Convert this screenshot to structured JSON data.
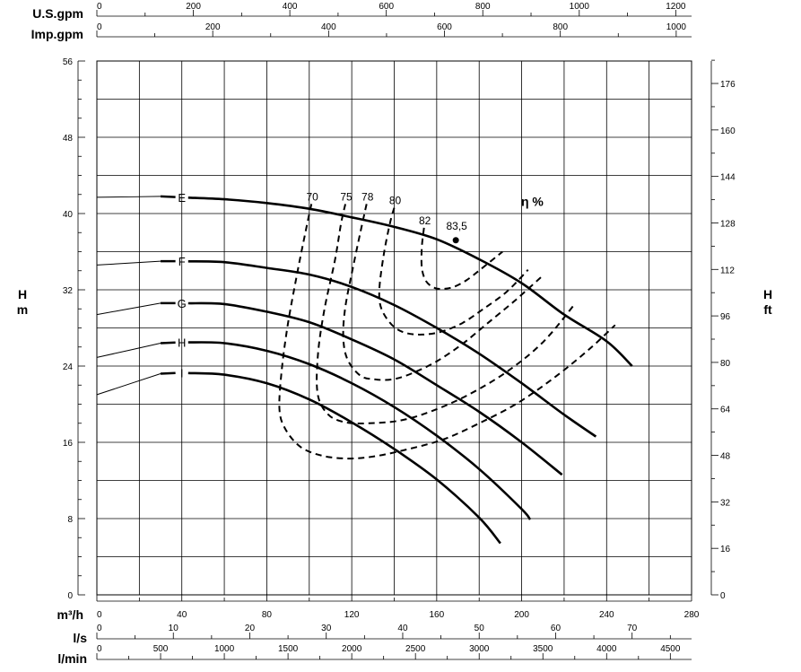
{
  "chart_data": {
    "type": "line",
    "title": "",
    "x_axis": {
      "unit": "m³/h",
      "range": [
        0,
        280
      ],
      "ticks": [
        0,
        40,
        80,
        120,
        160,
        200,
        240,
        280
      ],
      "grid_step": 20
    },
    "y_left": {
      "label_top": "H",
      "label_bottom": "m",
      "range": [
        0,
        56
      ],
      "ticks": [
        0,
        8,
        16,
        24,
        32,
        40,
        48,
        56
      ],
      "grid_step": 4
    },
    "y_right": {
      "label_top": "H",
      "label_bottom": "ft",
      "ticks": [
        0,
        16,
        32,
        48,
        64,
        80,
        96,
        112,
        128,
        144,
        160,
        176
      ]
    },
    "top_axes": [
      {
        "unit": "U.S.gpm",
        "ticks": [
          0,
          200,
          400,
          600,
          800,
          1000,
          1200
        ]
      },
      {
        "unit": "Imp.gpm",
        "ticks": [
          0,
          200,
          400,
          600,
          800,
          1000
        ]
      }
    ],
    "bottom_axes": [
      {
        "unit": "l/s",
        "ticks": [
          0,
          10,
          20,
          30,
          40,
          50,
          60,
          70
        ]
      },
      {
        "unit": "l/min",
        "ticks": [
          0,
          500,
          1000,
          1500,
          2000,
          2500,
          3000,
          3500,
          4000,
          4500
        ]
      }
    ],
    "series": [
      {
        "name": "E",
        "label_at": 40,
        "x": [
          0,
          30,
          40,
          60,
          80,
          100,
          120,
          140,
          160,
          180,
          200,
          220,
          240,
          252
        ],
        "y": [
          41.7,
          41.8,
          41.7,
          41.5,
          41.1,
          40.5,
          39.6,
          38.6,
          37.3,
          35.2,
          32.7,
          29.4,
          26.6,
          24.0
        ]
      },
      {
        "name": "F",
        "label_at": 40,
        "x": [
          0,
          30,
          40,
          60,
          80,
          100,
          120,
          140,
          160,
          180,
          200,
          220,
          235
        ],
        "y": [
          34.6,
          35.0,
          35.0,
          34.9,
          34.3,
          33.6,
          32.3,
          30.4,
          28.0,
          25.3,
          22.2,
          18.9,
          16.6
        ]
      },
      {
        "name": "G",
        "label_at": 40,
        "x": [
          0,
          30,
          40,
          60,
          80,
          100,
          120,
          140,
          160,
          180,
          200,
          219
        ],
        "y": [
          29.4,
          30.6,
          30.6,
          30.5,
          29.7,
          28.6,
          26.8,
          24.7,
          22.0,
          19.2,
          16.0,
          12.6
        ]
      },
      {
        "name": "H",
        "label_at": 40,
        "x": [
          0,
          30,
          40,
          60,
          80,
          100,
          120,
          140,
          160,
          180,
          200,
          204
        ],
        "y": [
          24.9,
          26.4,
          26.5,
          26.4,
          25.6,
          24.2,
          22.2,
          19.7,
          16.7,
          13.2,
          9.0,
          7.9
        ]
      },
      {
        "name": "I",
        "label_at": 40,
        "x": [
          0,
          30,
          40,
          60,
          80,
          100,
          120,
          140,
          160,
          180,
          190
        ],
        "y": [
          21.0,
          23.2,
          23.3,
          23.1,
          22.2,
          20.5,
          18.1,
          15.3,
          12.1,
          8.1,
          5.4
        ]
      }
    ],
    "efficiency": {
      "title": "η %",
      "bep_label": "83,5",
      "bep": [
        169,
        37.2
      ],
      "contours": [
        {
          "label": "70",
          "x": [
            101,
            99,
            95,
            90,
            87,
            86,
            89,
            96,
            106,
            118,
            130,
            145,
            163,
            180,
            198,
            216,
            232,
            244
          ],
          "y": [
            41,
            38.9,
            34.5,
            28.5,
            23.5,
            19.4,
            17.3,
            15.5,
            14.6,
            14.3,
            14.5,
            15.2,
            16.3,
            18.0,
            20.1,
            22.9,
            25.8,
            28.3
          ]
        },
        {
          "label": "75",
          "x": [
            117,
            115,
            112,
            107,
            104,
            104,
            109,
            117,
            128,
            143,
            158,
            175,
            193,
            210,
            225
          ],
          "y": [
            41,
            39.0,
            35.0,
            29.8,
            25.0,
            21.0,
            18.9,
            18.1,
            18.0,
            18.3,
            19.3,
            21.0,
            23.4,
            26.5,
            30.5
          ]
        },
        {
          "label": "78",
          "x": [
            127,
            125,
            121,
            117,
            116,
            118,
            124,
            131,
            139,
            148,
            160,
            172,
            184,
            197,
            210
          ],
          "y": [
            41,
            39.0,
            34.8,
            30.2,
            27.0,
            24.7,
            23.0,
            22.6,
            22.6,
            23.2,
            24.5,
            26.3,
            28.5,
            30.9,
            33.5
          ]
        },
        {
          "label": "80",
          "x": [
            140,
            138,
            135,
            133,
            134,
            139,
            145,
            153,
            162,
            172,
            182,
            193,
            203
          ],
          "y": [
            40.6,
            39.0,
            35.6,
            32.0,
            30.0,
            28.3,
            27.5,
            27.3,
            27.6,
            28.5,
            30.0,
            31.8,
            34.1
          ]
        },
        {
          "label": "82",
          "x": [
            154,
            153,
            153,
            155,
            159,
            163,
            168,
            174,
            181,
            191
          ],
          "y": [
            38.5,
            36.5,
            34.3,
            32.9,
            32.2,
            32.1,
            32.3,
            33.0,
            34.2,
            36.0
          ]
        }
      ]
    }
  }
}
